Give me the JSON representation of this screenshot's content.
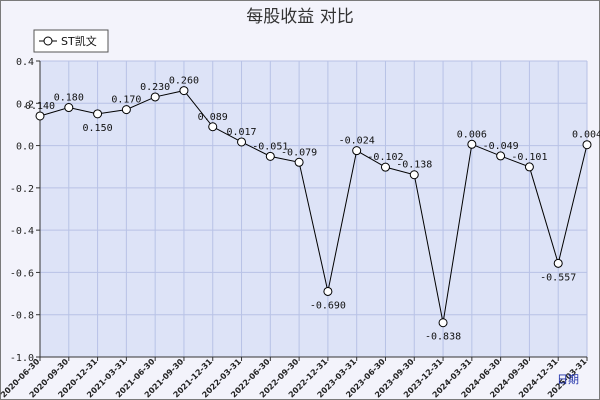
{
  "chart_data": {
    "type": "line",
    "title": "每股收益  对比",
    "xlabel": "日期",
    "ylabel": "",
    "ylim": [
      -1.0,
      0.4
    ],
    "yticks": [
      "0.4",
      "0.2",
      "0.0",
      "-0.2",
      "-0.4",
      "-0.6",
      "-0.8",
      "-1.0"
    ],
    "grid": true,
    "legend_position": "top-left",
    "categories": [
      "2020-06-30",
      "2020-09-30",
      "2020-12-31",
      "2021-03-31",
      "2021-06-30",
      "2021-09-30",
      "2021-12-31",
      "2022-03-31",
      "2022-06-30",
      "2022-09-30",
      "2022-12-31",
      "2023-03-31",
      "2023-06-30",
      "2023-09-30",
      "2023-12-31",
      "2024-03-31",
      "2024-06-30",
      "2024-09-30",
      "2024-12-31",
      "2025-03-31"
    ],
    "series": [
      {
        "name": "ST凯文",
        "color": "#000000",
        "values": [
          0.14,
          0.18,
          0.15,
          0.17,
          0.23,
          0.26,
          0.089,
          0.017,
          -0.051,
          -0.079,
          -0.69,
          -0.024,
          -0.102,
          -0.138,
          -0.838,
          0.006,
          -0.049,
          -0.101,
          -0.557,
          0.004
        ],
        "labels": [
          "0.140",
          "0.180",
          "0.150",
          "0.170",
          "0.230",
          "0.260",
          "0.089",
          "0.017",
          "-0.051",
          "-0.079",
          "-0.690",
          "-0.024",
          "-0.102",
          "-0.138",
          "-0.838",
          "0.006",
          "-0.049",
          "-0.101",
          "-0.557",
          "0.004"
        ]
      }
    ],
    "colors": {
      "plot_bg": "#dde3f7",
      "grid": "#b8c2e6",
      "frame_bg": "#f3f3fb"
    }
  }
}
